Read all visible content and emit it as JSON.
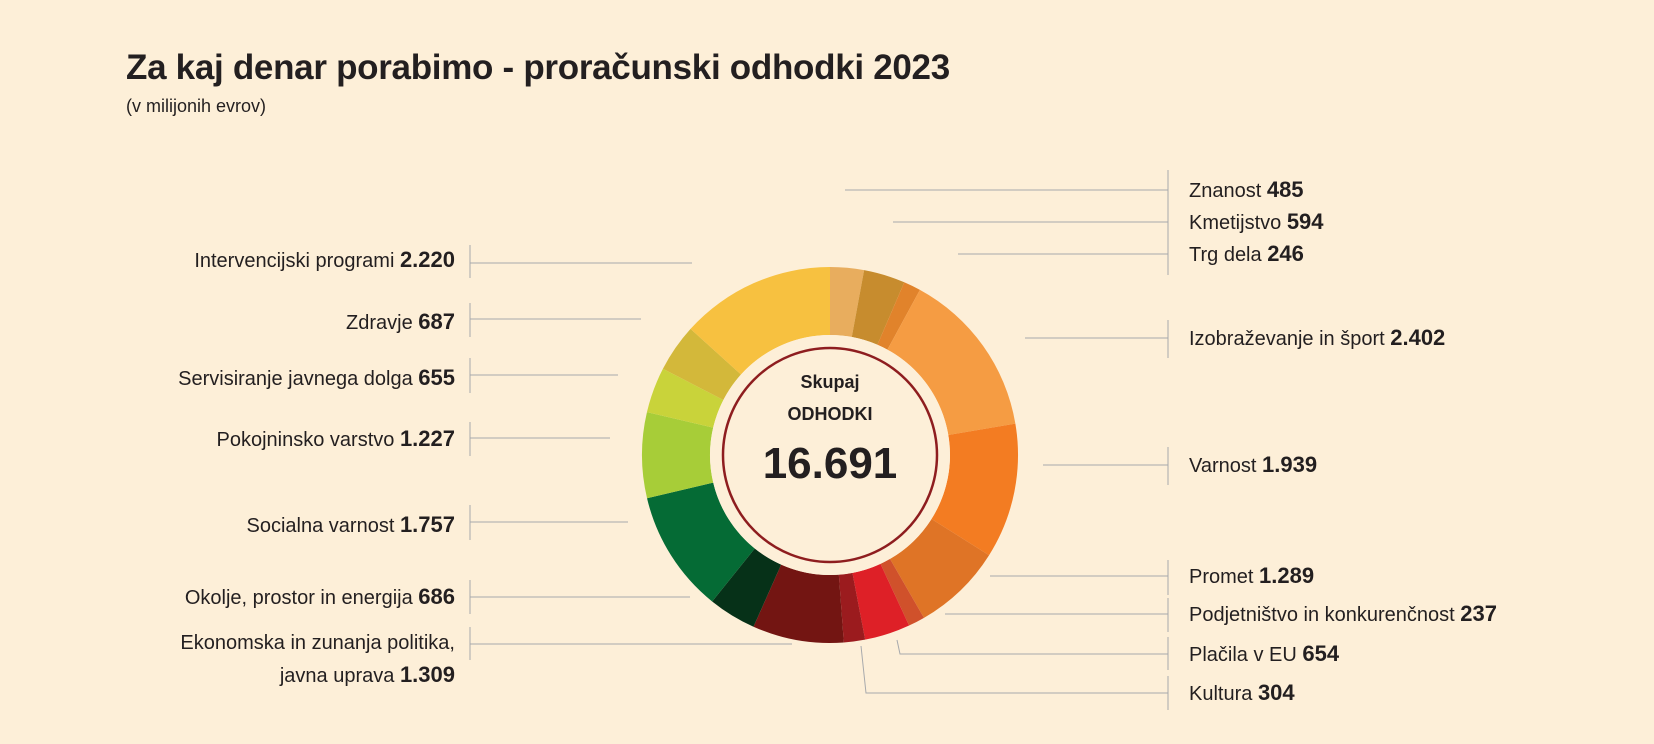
{
  "title": "Za kaj denar porabimo - proračunski odhodki 2023",
  "subtitle": "(v milijonih evrov)",
  "chart_data": {
    "type": "pie",
    "donut": true,
    "center": {
      "line1": "Skupaj",
      "line2": "ODHODKI",
      "total": "16.691"
    },
    "slices": [
      {
        "label": "Znanost",
        "value_text": "485",
        "value": 485,
        "color": "#e8ad5e"
      },
      {
        "label": "Kmetijstvo",
        "value_text": "594",
        "value": 594,
        "color": "#c78c2e"
      },
      {
        "label": "Trg dela",
        "value_text": "246",
        "value": 246,
        "color": "#e1832b"
      },
      {
        "label": "Izobraževanje in šport",
        "value_text": "2.402",
        "value": 2402,
        "color": "#f59c43"
      },
      {
        "label": "Varnost",
        "value_text": "1.939",
        "value": 1939,
        "color": "#f37c22"
      },
      {
        "label": "Promet",
        "value_text": "1.289",
        "value": 1289,
        "color": "#df7426"
      },
      {
        "label": "Podjetništvo in konkurenčnost",
        "value_text": "237",
        "value": 237,
        "color": "#d0512b"
      },
      {
        "label": "Plačila v EU",
        "value_text": "654",
        "value": 654,
        "color": "#de2027"
      },
      {
        "label": "Kultura",
        "value_text": "304",
        "value": 304,
        "color": "#9b1b1e"
      },
      {
        "label_lines": [
          "Ekonomska in zunanja politika,",
          "javna uprava"
        ],
        "value_text": "1.309",
        "value": 1309,
        "color": "#731512"
      },
      {
        "label": "Okolje, prostor in energija",
        "value_text": "686",
        "value": 686,
        "color": "#063118"
      },
      {
        "label": "Socialna varnost",
        "value_text": "1.757",
        "value": 1757,
        "color": "#056b35"
      },
      {
        "label": "Pokojninsko varstvo",
        "value_text": "1.227",
        "value": 1227,
        "color": "#a7cd38"
      },
      {
        "label": "Servisiranje javnega dolga",
        "value_text": "655",
        "value": 655,
        "color": "#c9d33a"
      },
      {
        "label": "Zdravje",
        "value_text": "687",
        "value": 687,
        "color": "#d3b83a"
      },
      {
        "label": "Intervencijski programi",
        "value_text": "2.220",
        "value": 2220,
        "color": "#f7c140"
      }
    ]
  }
}
